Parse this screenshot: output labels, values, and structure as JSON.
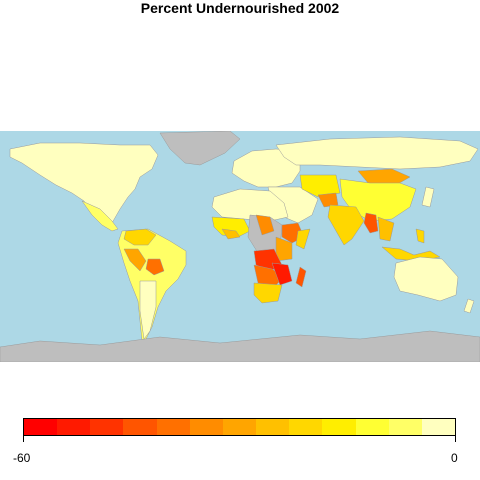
{
  "title": "Percent Undernourished 2002",
  "colors": {
    "ocean": "#add8e6",
    "no_data": "#bebebe",
    "border": "#9a9a9a"
  },
  "legend": {
    "min_label": "-60",
    "max_label": "0",
    "colors": [
      "#ff0000",
      "#ff1a00",
      "#ff3300",
      "#ff5500",
      "#ff7000",
      "#ff8c00",
      "#ffa500",
      "#ffc000",
      "#ffd700",
      "#ffee00",
      "#ffff33",
      "#ffff66",
      "#ffffbf"
    ]
  },
  "chart_data": {
    "type": "heatmap",
    "title": "Percent Undernourished 2002",
    "scale_range": [
      -60,
      0
    ],
    "scale_bins": 13,
    "no_data_color": "#bebebe",
    "ocean_color": "#add8e6"
  }
}
